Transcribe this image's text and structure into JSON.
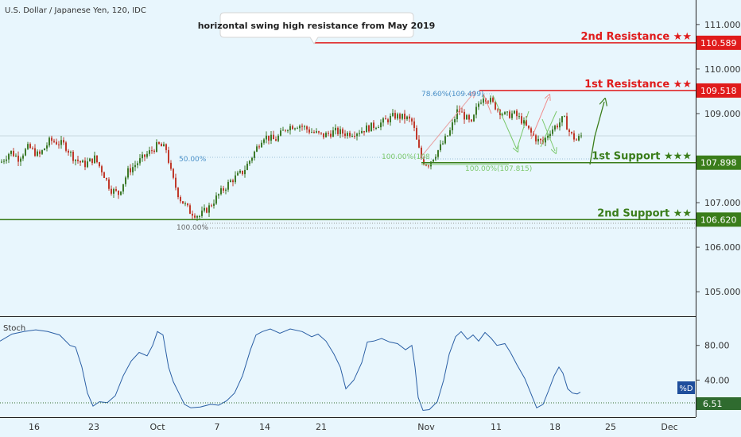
{
  "header": {
    "title": "U.S. Dollar / Japanese Yen, 120, IDC"
  },
  "colors": {
    "background": "#e8f6fd",
    "resistance": "#e01b1b",
    "support": "#3a7d1a",
    "fib": "#4a90c8",
    "stoch_line": "#2b5fa5",
    "candle_up": "#3d7a2a",
    "candle_down": "#c0392b",
    "axis_tag_blue": "#1e4e9c"
  },
  "chart_data": [
    {
      "type": "candlestick",
      "title": "U.S. Dollar / Japanese Yen, 120, IDC",
      "ylim": [
        104.45,
        111.55
      ],
      "yticks": [
        "111.000",
        "110.000",
        "109.000",
        "107.000",
        "106.000",
        "105.000"
      ],
      "xticks": [
        "16",
        "23",
        "Oct",
        "7",
        "14",
        "21",
        "Nov",
        "11",
        "18",
        "25",
        "Dec"
      ],
      "close_path": [
        [
          0,
          107.9
        ],
        [
          12,
          108.15
        ],
        [
          22,
          108.0
        ],
        [
          35,
          108.25
        ],
        [
          48,
          108.05
        ],
        [
          62,
          108.4
        ],
        [
          80,
          108.3
        ],
        [
          92,
          108.0
        ],
        [
          105,
          107.85
        ],
        [
          118,
          108.0
        ],
        [
          128,
          107.7
        ],
        [
          138,
          107.3
        ],
        [
          148,
          107.2
        ],
        [
          160,
          107.7
        ],
        [
          172,
          107.9
        ],
        [
          185,
          108.1
        ],
        [
          198,
          108.3
        ],
        [
          208,
          108.2
        ],
        [
          215,
          107.6
        ],
        [
          225,
          107.1
        ],
        [
          238,
          106.8
        ],
        [
          250,
          106.7
        ],
        [
          262,
          106.9
        ],
        [
          275,
          107.2
        ],
        [
          290,
          107.5
        ],
        [
          305,
          107.7
        ],
        [
          318,
          108.1
        ],
        [
          330,
          108.5
        ],
        [
          345,
          108.4
        ],
        [
          360,
          108.7
        ],
        [
          375,
          108.75
        ],
        [
          390,
          108.6
        ],
        [
          405,
          108.5
        ],
        [
          420,
          108.6
        ],
        [
          435,
          108.55
        ],
        [
          450,
          108.6
        ],
        [
          465,
          108.7
        ],
        [
          480,
          108.8
        ],
        [
          495,
          108.95
        ],
        [
          510,
          108.9
        ],
        [
          518,
          108.8
        ],
        [
          524,
          108.3
        ],
        [
          530,
          107.95
        ],
        [
          537,
          107.85
        ],
        [
          545,
          108.05
        ],
        [
          555,
          108.3
        ],
        [
          565,
          108.6
        ],
        [
          575,
          109.1
        ],
        [
          585,
          108.9
        ],
        [
          592,
          108.75
        ],
        [
          600,
          109.2
        ],
        [
          607,
          109.4
        ],
        [
          615,
          109.3
        ],
        [
          625,
          109.1
        ],
        [
          635,
          108.95
        ],
        [
          645,
          109.0
        ],
        [
          655,
          108.85
        ],
        [
          665,
          108.6
        ],
        [
          675,
          108.4
        ],
        [
          682,
          108.35
        ],
        [
          690,
          108.6
        ],
        [
          700,
          108.75
        ],
        [
          708,
          108.9
        ],
        [
          716,
          108.55
        ],
        [
          724,
          108.4
        ],
        [
          730,
          108.5
        ]
      ],
      "horizontal_levels": [
        {
          "name": "2nd Resistance",
          "label": "2nd Resistance ★★",
          "value": 110.589,
          "tag": "110.589",
          "role": "resistance"
        },
        {
          "name": "1st Resistance",
          "label": "1st Resistance ★★",
          "value": 109.518,
          "tag": "109.518",
          "role": "resistance"
        },
        {
          "name": "1st Support",
          "label": "1st Support ★★★",
          "value": 107.898,
          "tag": "107.898",
          "role": "support"
        },
        {
          "name": "2nd Support",
          "label": "2nd Support ★★",
          "value": 106.62,
          "tag": "106.620",
          "role": "support"
        }
      ],
      "annotations": [
        {
          "text": "horizontal swing high resistance from May 2019"
        },
        {
          "text": "78.60%(109.499)"
        },
        {
          "text": "50.00%"
        },
        {
          "text": "100.00%"
        },
        {
          "text": "100.00%(108"
        },
        {
          "text": "100.00%(107.815)"
        }
      ]
    },
    {
      "type": "line",
      "title": "Stoch",
      "ylim": [
        0,
        110
      ],
      "yticks": [
        "80.00",
        "40.00"
      ],
      "current_value": "6.51",
      "current_tag": "%D",
      "values_path": [
        [
          0,
          85
        ],
        [
          15,
          93
        ],
        [
          30,
          96
        ],
        [
          45,
          98
        ],
        [
          60,
          96
        ],
        [
          75,
          92
        ],
        [
          88,
          80
        ],
        [
          95,
          78
        ],
        [
          103,
          55
        ],
        [
          110,
          25
        ],
        [
          117,
          10
        ],
        [
          125,
          15
        ],
        [
          135,
          14
        ],
        [
          145,
          22
        ],
        [
          155,
          45
        ],
        [
          165,
          62
        ],
        [
          175,
          72
        ],
        [
          185,
          68
        ],
        [
          192,
          80
        ],
        [
          198,
          96
        ],
        [
          205,
          92
        ],
        [
          212,
          55
        ],
        [
          218,
          38
        ],
        [
          225,
          25
        ],
        [
          232,
          12
        ],
        [
          240,
          8
        ],
        [
          252,
          9
        ],
        [
          265,
          12
        ],
        [
          275,
          11
        ],
        [
          285,
          16
        ],
        [
          295,
          25
        ],
        [
          305,
          45
        ],
        [
          315,
          75
        ],
        [
          322,
          92
        ],
        [
          330,
          96
        ],
        [
          340,
          99
        ],
        [
          352,
          94
        ],
        [
          365,
          99
        ],
        [
          380,
          96
        ],
        [
          392,
          90
        ],
        [
          400,
          93
        ],
        [
          410,
          85
        ],
        [
          420,
          70
        ],
        [
          428,
          55
        ],
        [
          435,
          30
        ],
        [
          445,
          40
        ],
        [
          455,
          60
        ],
        [
          462,
          84
        ],
        [
          470,
          85
        ],
        [
          480,
          88
        ],
        [
          490,
          84
        ],
        [
          500,
          82
        ],
        [
          510,
          75
        ],
        [
          518,
          80
        ],
        [
          522,
          55
        ],
        [
          526,
          20
        ],
        [
          532,
          5
        ],
        [
          540,
          6
        ],
        [
          550,
          15
        ],
        [
          558,
          40
        ],
        [
          565,
          70
        ],
        [
          573,
          90
        ],
        [
          580,
          96
        ],
        [
          588,
          87
        ],
        [
          595,
          92
        ],
        [
          602,
          85
        ],
        [
          610,
          95
        ],
        [
          618,
          88
        ],
        [
          625,
          80
        ],
        [
          635,
          82
        ],
        [
          642,
          72
        ],
        [
          650,
          58
        ],
        [
          660,
          42
        ],
        [
          668,
          24
        ],
        [
          675,
          8
        ],
        [
          683,
          12
        ],
        [
          690,
          28
        ],
        [
          697,
          45
        ],
        [
          703,
          55
        ],
        [
          708,
          48
        ],
        [
          714,
          30
        ],
        [
          720,
          25
        ],
        [
          726,
          24
        ],
        [
          730,
          26
        ]
      ]
    }
  ]
}
